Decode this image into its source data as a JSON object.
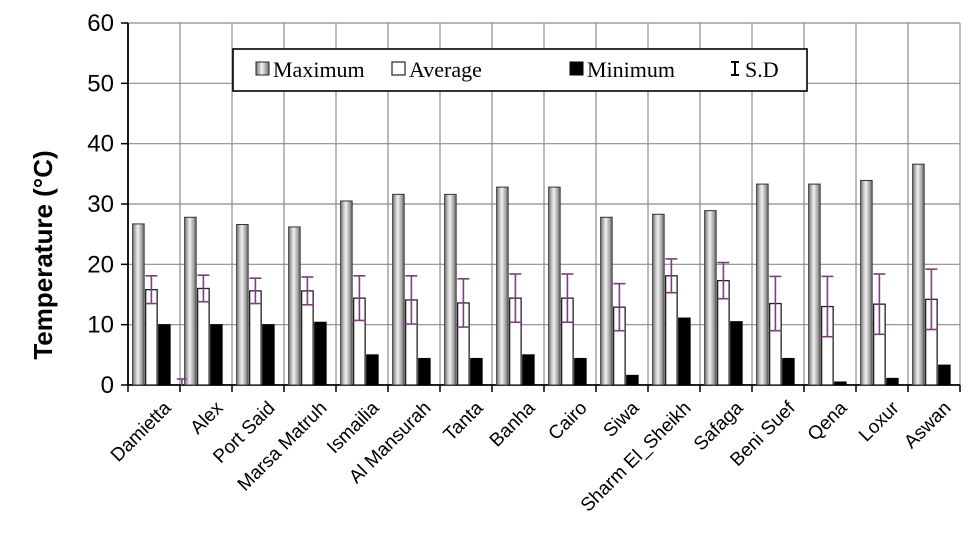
{
  "chart_data": {
    "type": "bar",
    "ylabel": "Temperature (°C)",
    "ylim": [
      0,
      60
    ],
    "yticks": [
      0,
      10,
      20,
      30,
      40,
      50,
      60
    ],
    "grid": true,
    "legend_position": "top-center",
    "categories": [
      "Damietta",
      "Alex",
      "Port Said",
      "Marsa Matruh",
      "Ismailia",
      "Al Mansurah",
      "Tanta",
      "Banha",
      "Cairo",
      "Siwa",
      "Sharm El_Sheikh",
      "Safaga",
      "Beni Suef",
      "Qena",
      "Loxur",
      "Aswan"
    ],
    "series": [
      {
        "name": "Maximum",
        "values": [
          26.7,
          27.8,
          26.6,
          26.2,
          30.5,
          31.6,
          31.6,
          32.8,
          32.8,
          27.8,
          28.3,
          28.9,
          33.3,
          33.3,
          33.9,
          36.6
        ]
      },
      {
        "name": "Average",
        "values": [
          15.8,
          16.0,
          15.6,
          15.6,
          14.4,
          14.1,
          13.6,
          14.4,
          14.4,
          12.9,
          18.1,
          17.3,
          13.5,
          13.0,
          13.4,
          14.2
        ]
      },
      {
        "name": "Minimum",
        "values": [
          10.0,
          10.0,
          10.0,
          10.4,
          5.0,
          4.4,
          4.4,
          5.0,
          4.4,
          1.6,
          11.1,
          10.5,
          4.4,
          0.5,
          1.1,
          3.3
        ]
      }
    ],
    "sd": [
      2.3,
      2.2,
      2.1,
      2.3,
      3.7,
      4.0,
      4.0,
      4.0,
      4.0,
      3.9,
      2.8,
      3.0,
      4.5,
      5.0,
      5.0,
      5.0
    ],
    "legend": [
      "Maximum",
      "Average",
      "Minimum",
      "S.D"
    ]
  }
}
